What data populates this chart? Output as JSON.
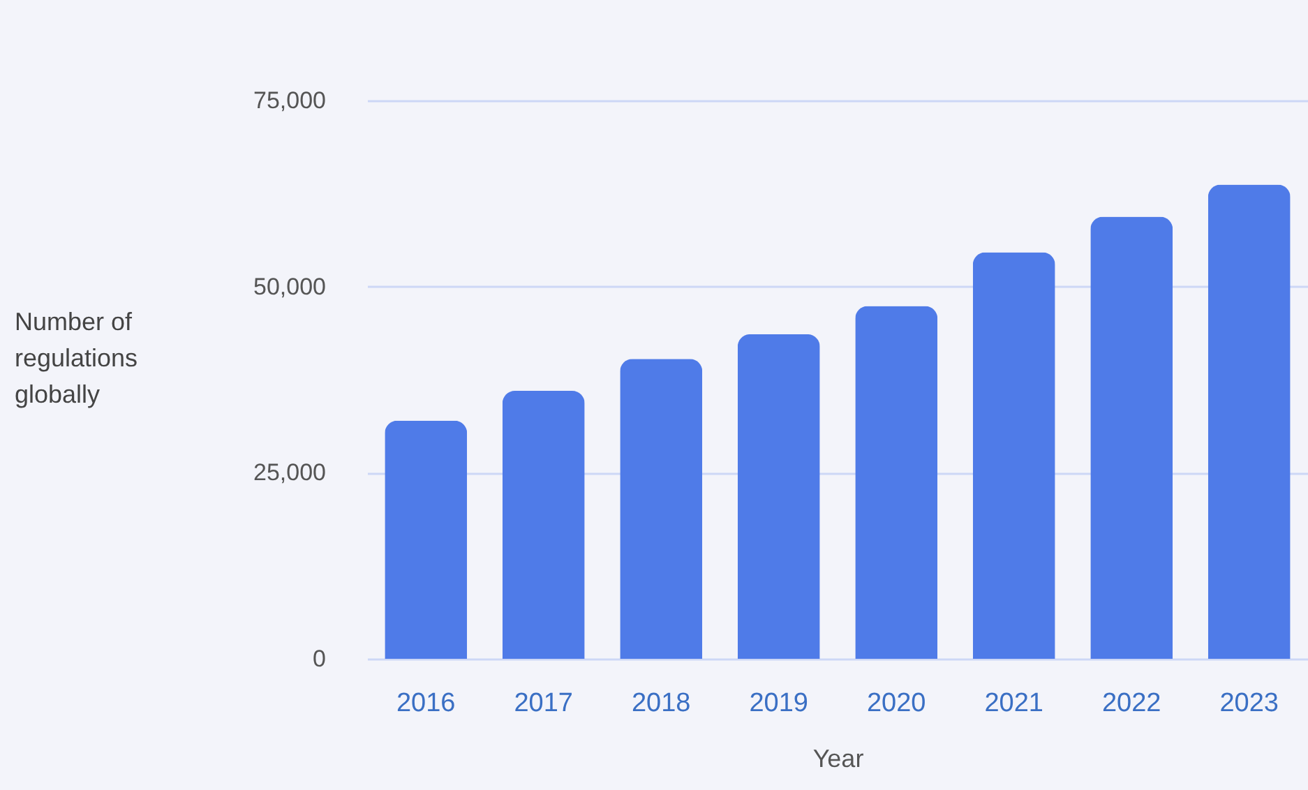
{
  "chart_data": {
    "type": "bar",
    "xlabel": "Year",
    "ylabel": "Number of\nregulations\nglobally",
    "categories": [
      "2016",
      "2017",
      "2018",
      "2019",
      "2020",
      "2021",
      "2022",
      "2023"
    ],
    "values": [
      32000,
      36000,
      40300,
      43600,
      47400,
      54600,
      59400,
      63700
    ],
    "color": "#4f7be8",
    "ylim": [
      0,
      75000
    ],
    "yticks": [
      0,
      {
        "value": 25000,
        "label": "25,000"
      },
      {
        "value": 50000,
        "label": "50,000"
      },
      {
        "value": 75000,
        "label": "75,000"
      }
    ],
    "grid": "y"
  }
}
